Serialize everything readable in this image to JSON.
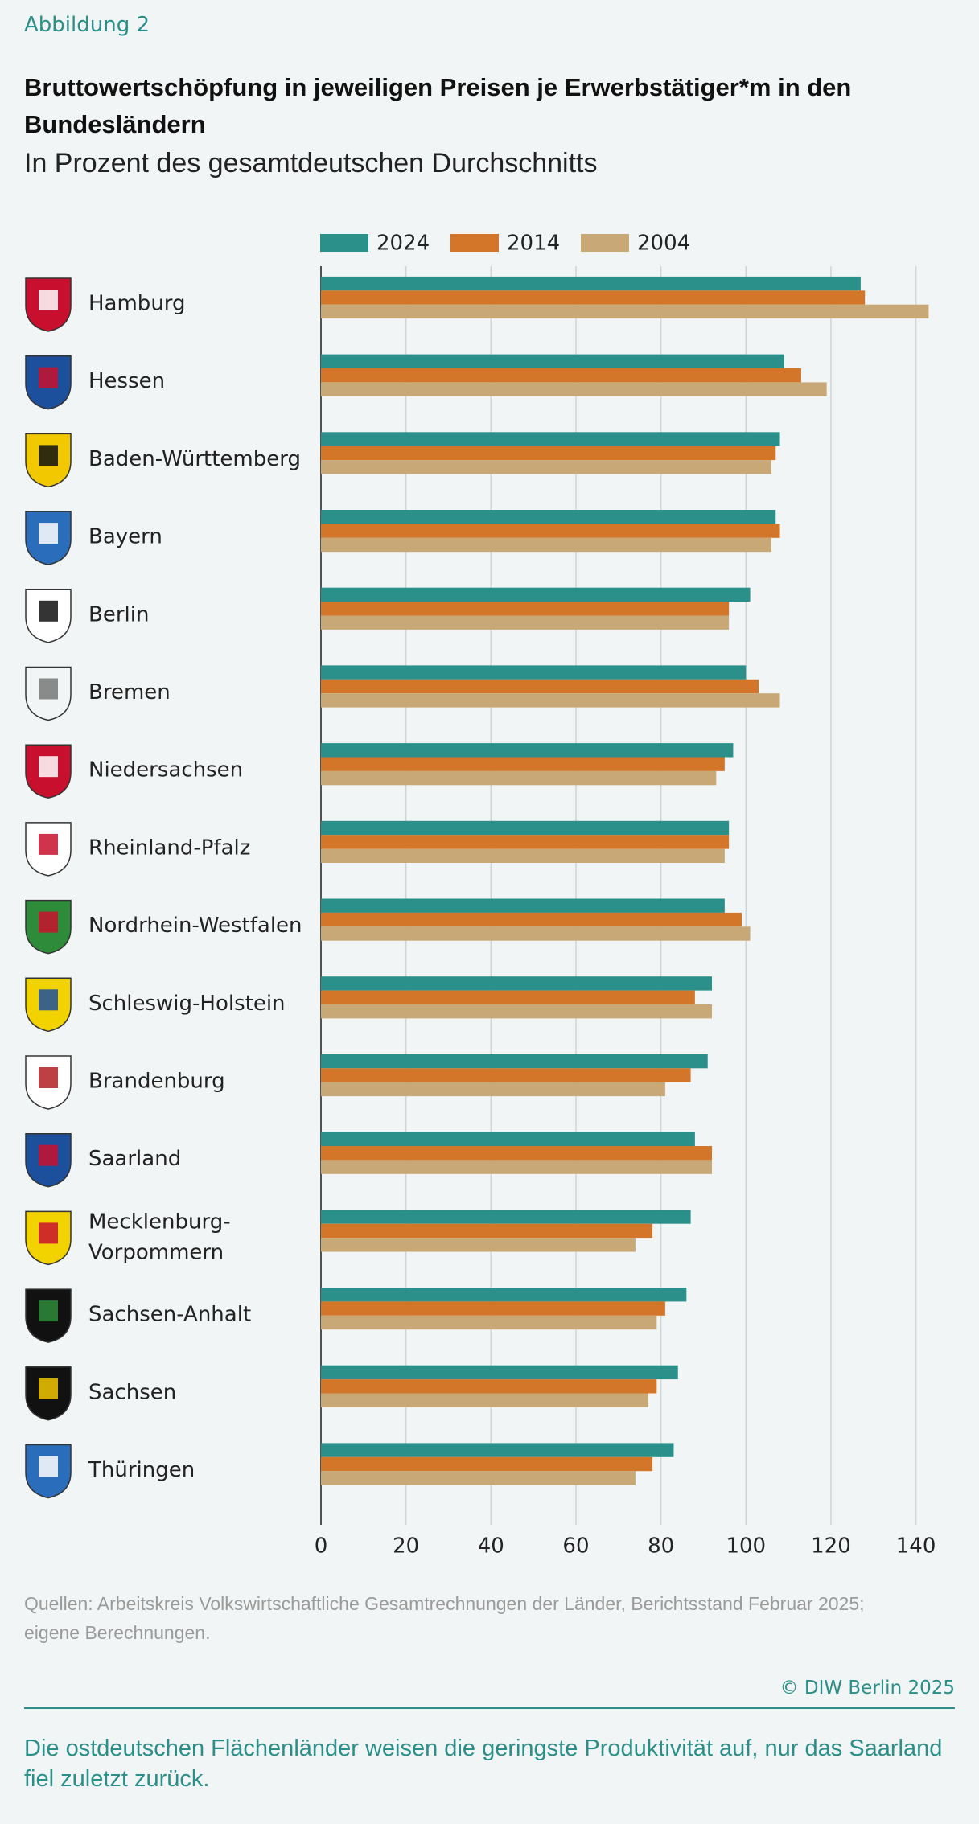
{
  "figure_label": "Abbildung 2",
  "chart_data": {
    "type": "hbar",
    "title": "Bruttowertschöpfung in jeweiligen Preisen je Erwerbstätiger*m in den Bundesländern",
    "subtitle": "In Prozent des gesamtdeutschen Durchschnitts",
    "categories": [
      "Hamburg",
      "Hessen",
      "Baden-Württemberg",
      "Bayern",
      "Berlin",
      "Bremen",
      "Niedersachsen",
      "Rheinland-Pfalz",
      "Nordrhein-Westfalen",
      "Schleswig-Holstein",
      "Brandenburg",
      "Saarland",
      "Mecklenburg-Vorpommern",
      "Sachsen-Anhalt",
      "Sachsen",
      "Thüringen"
    ],
    "series": [
      {
        "name": "2024",
        "color": "#2a9089",
        "values": [
          127,
          109,
          108,
          107,
          101,
          100,
          97,
          96,
          95,
          92,
          91,
          88,
          87,
          86,
          84,
          83
        ]
      },
      {
        "name": "2014",
        "color": "#d4762a",
        "values": [
          128,
          113,
          107,
          108,
          96,
          103,
          95,
          96,
          99,
          88,
          87,
          92,
          78,
          81,
          79,
          78
        ]
      },
      {
        "name": "2004",
        "color": "#c9a878",
        "values": [
          143,
          119,
          106,
          106,
          96,
          108,
          93,
          95,
          101,
          92,
          81,
          92,
          74,
          79,
          77,
          74
        ]
      }
    ],
    "xlim": [
      0,
      145
    ],
    "xticks": [
      0,
      20,
      40,
      60,
      80,
      100,
      120,
      140
    ],
    "grid": true,
    "source": "Quellen: Arbeitskreis Volkswirtschaftliche Gesamtrechnungen der Länder, Berichtsstand Februar 2025; eigene Berechnungen.",
    "copyright": "© DIW Berlin 2025",
    "takeaway": "Die ostdeutschen Flächenländer weisen die geringste Produktivität auf, nur das Saarland fiel zuletzt zurück."
  }
}
